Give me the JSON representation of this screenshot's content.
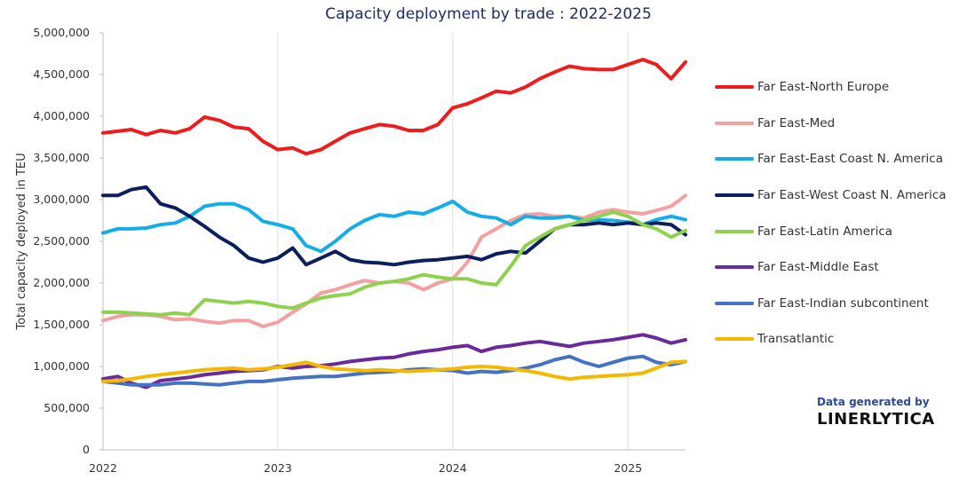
{
  "chart_data": {
    "type": "line",
    "title": "Capacity deployment by trade : 2022-2025",
    "xlabel": "",
    "ylabel": "Total capacity deployed in TEU",
    "ylim": [
      0,
      5000000
    ],
    "xlim": [
      "2022-01-01",
      "2025-05-01"
    ],
    "y_tick_labels": [
      "0",
      "500,000",
      "1,000,000",
      "1,500,000",
      "2,000,000",
      "2,500,000",
      "3,000,000",
      "3,500,000",
      "4,000,000",
      "4,500,000",
      "5,000,000"
    ],
    "x_tick_labels": [
      "2022",
      "2023",
      "2024",
      "2025"
    ],
    "grid": "vertical only",
    "legend_position": "right",
    "x_dates": [
      "2022-01-01",
      "2022-02-01",
      "2022-03-01",
      "2022-04-01",
      "2022-05-01",
      "2022-06-01",
      "2022-07-01",
      "2022-08-01",
      "2022-09-01",
      "2022-10-01",
      "2022-11-01",
      "2022-12-01",
      "2023-01-01",
      "2023-02-01",
      "2023-03-01",
      "2023-04-01",
      "2023-05-01",
      "2023-06-01",
      "2023-07-01",
      "2023-08-01",
      "2023-09-01",
      "2023-10-01",
      "2023-11-01",
      "2023-12-01",
      "2024-01-01",
      "2024-02-01",
      "2024-03-01",
      "2024-04-01",
      "2024-05-01",
      "2024-06-01",
      "2024-07-01",
      "2024-08-01",
      "2024-09-01",
      "2024-10-01",
      "2024-11-01",
      "2024-12-01",
      "2025-01-01",
      "2025-02-01",
      "2025-03-01",
      "2025-04-01",
      "2025-05-01"
    ],
    "series": [
      {
        "name": "Far East-North Europe",
        "color": "#ee1c1c",
        "values": [
          3800000,
          3820000,
          3840000,
          3780000,
          3830000,
          3800000,
          3850000,
          3990000,
          3950000,
          3870000,
          3850000,
          3700000,
          3600000,
          3620000,
          3550000,
          3600000,
          3700000,
          3800000,
          3850000,
          3900000,
          3880000,
          3830000,
          3830000,
          3900000,
          4100000,
          4150000,
          4220000,
          4300000,
          4280000,
          4350000,
          4450000,
          4530000,
          4600000,
          4570000,
          4560000,
          4560000,
          4620000,
          4680000,
          4620000,
          4450000,
          4650000
        ]
      },
      {
        "name": "Far East-Med",
        "color": "#f4a0a0",
        "values": [
          1550000,
          1600000,
          1620000,
          1620000,
          1600000,
          1560000,
          1570000,
          1540000,
          1520000,
          1550000,
          1550000,
          1480000,
          1530000,
          1650000,
          1750000,
          1880000,
          1920000,
          1980000,
          2030000,
          2000000,
          2020000,
          2000000,
          1920000,
          2000000,
          2050000,
          2250000,
          2550000,
          2650000,
          2750000,
          2820000,
          2830000,
          2800000,
          2800000,
          2780000,
          2850000,
          2880000,
          2850000,
          2830000,
          2870000,
          2920000,
          3050000
        ]
      },
      {
        "name": "Far East-East Coast N. America",
        "color": "#13aee8",
        "values": [
          2600000,
          2650000,
          2650000,
          2660000,
          2700000,
          2720000,
          2800000,
          2920000,
          2950000,
          2950000,
          2880000,
          2740000,
          2700000,
          2650000,
          2450000,
          2380000,
          2500000,
          2650000,
          2750000,
          2820000,
          2800000,
          2850000,
          2830000,
          2900000,
          2980000,
          2850000,
          2800000,
          2780000,
          2700000,
          2800000,
          2780000,
          2780000,
          2800000,
          2750000,
          2760000,
          2750000,
          2730000,
          2700000,
          2760000,
          2800000,
          2760000
        ]
      },
      {
        "name": "Far East-West Coast N. America",
        "color": "#0b1f5c",
        "values": [
          3050000,
          3050000,
          3120000,
          3150000,
          2950000,
          2900000,
          2800000,
          2680000,
          2550000,
          2450000,
          2300000,
          2250000,
          2300000,
          2420000,
          2220000,
          2300000,
          2380000,
          2280000,
          2250000,
          2240000,
          2220000,
          2250000,
          2270000,
          2280000,
          2300000,
          2320000,
          2280000,
          2350000,
          2380000,
          2360000,
          2500000,
          2650000,
          2700000,
          2700000,
          2720000,
          2700000,
          2720000,
          2700000,
          2720000,
          2700000,
          2580000
        ]
      },
      {
        "name": "Far East-Latin America",
        "color": "#8cd24e",
        "values": [
          1650000,
          1650000,
          1640000,
          1630000,
          1620000,
          1640000,
          1620000,
          1800000,
          1780000,
          1760000,
          1780000,
          1760000,
          1720000,
          1700000,
          1760000,
          1820000,
          1850000,
          1870000,
          1950000,
          2000000,
          2020000,
          2050000,
          2100000,
          2070000,
          2050000,
          2050000,
          2000000,
          1980000,
          2200000,
          2450000,
          2550000,
          2650000,
          2700000,
          2750000,
          2800000,
          2850000,
          2800000,
          2700000,
          2650000,
          2550000,
          2630000
        ]
      },
      {
        "name": "Far East-Middle East",
        "color": "#6a2a9c",
        "values": [
          850000,
          880000,
          800000,
          750000,
          830000,
          850000,
          870000,
          900000,
          920000,
          940000,
          950000,
          960000,
          1000000,
          980000,
          1000000,
          1010000,
          1030000,
          1060000,
          1080000,
          1100000,
          1110000,
          1150000,
          1180000,
          1200000,
          1230000,
          1250000,
          1180000,
          1230000,
          1250000,
          1280000,
          1300000,
          1270000,
          1240000,
          1280000,
          1300000,
          1320000,
          1350000,
          1380000,
          1340000,
          1280000,
          1320000
        ]
      },
      {
        "name": "Far East-Indian subcontinent",
        "color": "#4472c4",
        "values": [
          820000,
          800000,
          780000,
          780000,
          780000,
          800000,
          800000,
          790000,
          780000,
          800000,
          820000,
          820000,
          840000,
          860000,
          870000,
          880000,
          880000,
          900000,
          920000,
          930000,
          940000,
          960000,
          970000,
          960000,
          950000,
          920000,
          940000,
          930000,
          950000,
          980000,
          1020000,
          1080000,
          1120000,
          1050000,
          1000000,
          1050000,
          1100000,
          1120000,
          1050000,
          1020000,
          1060000
        ]
      },
      {
        "name": "Transatlantic",
        "color": "#f5b800",
        "values": [
          820000,
          830000,
          850000,
          880000,
          900000,
          920000,
          940000,
          960000,
          970000,
          980000,
          960000,
          970000,
          990000,
          1020000,
          1050000,
          1000000,
          970000,
          960000,
          950000,
          960000,
          950000,
          940000,
          950000,
          960000,
          970000,
          990000,
          1000000,
          990000,
          970000,
          950000,
          920000,
          880000,
          850000,
          870000,
          880000,
          890000,
          900000,
          920000,
          980000,
          1050000,
          1060000
        ]
      }
    ]
  },
  "credit": {
    "line1": "Data generated by",
    "brand": "LINERLYTICA"
  }
}
